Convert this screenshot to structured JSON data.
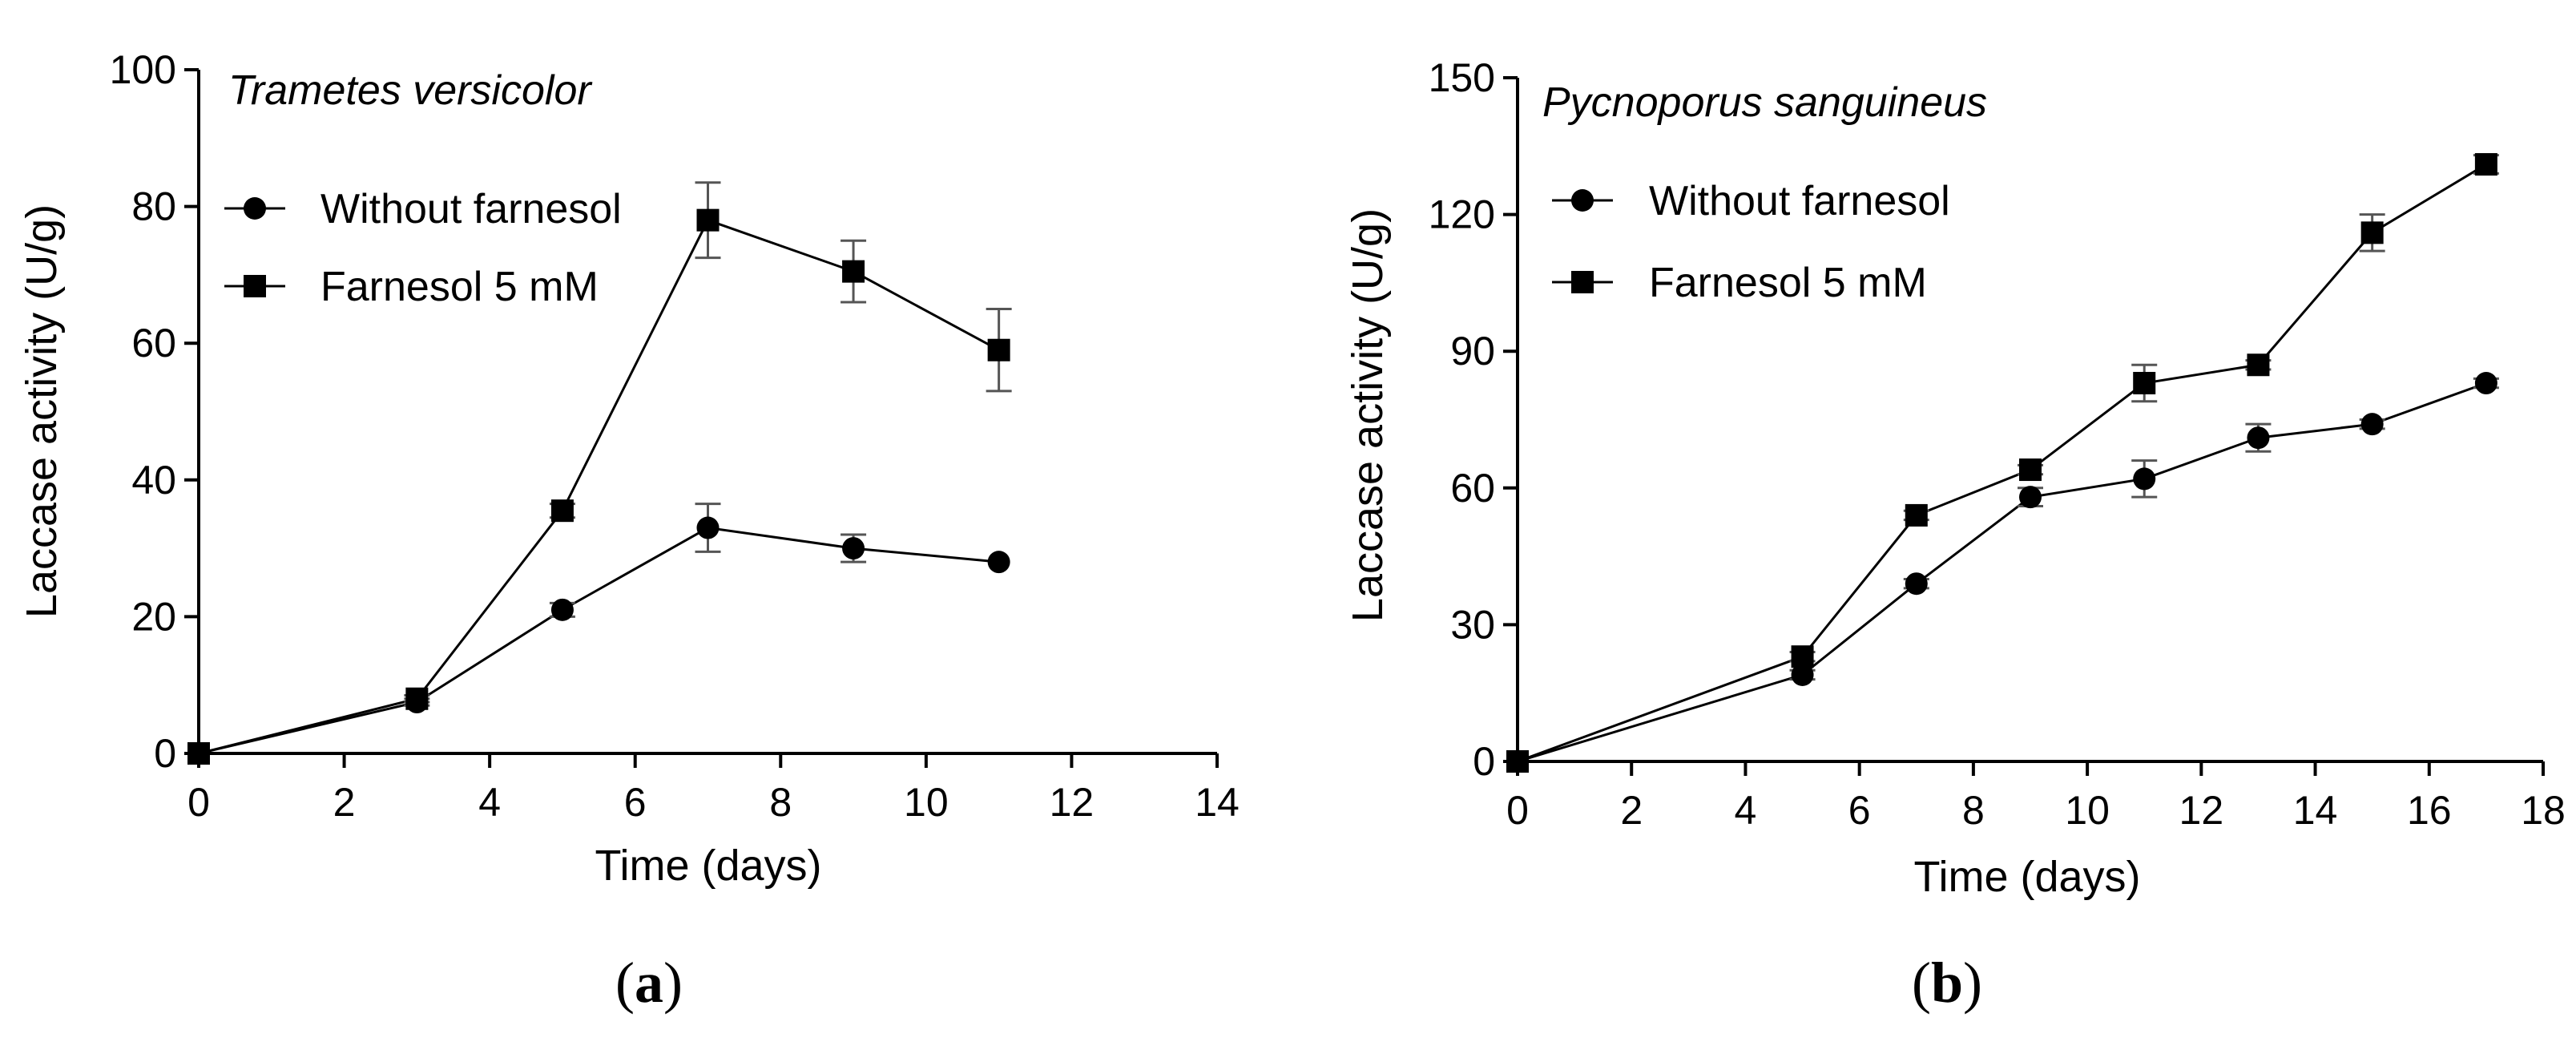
{
  "chart_data": [
    {
      "type": "line",
      "panel_label": "(a)",
      "panel_label_bold": "a",
      "title": "Trametes versicolor",
      "xlabel": "Time (days)",
      "ylabel": "Laccase activity (U/g)",
      "xlim": [
        0,
        14
      ],
      "ylim": [
        0,
        100
      ],
      "xticks": [
        0,
        2,
        4,
        6,
        8,
        10,
        12,
        14
      ],
      "yticks": [
        0,
        20,
        40,
        60,
        80,
        100
      ],
      "grid": false,
      "legend_position": "top-left",
      "series": [
        {
          "name": "Without farnesol",
          "marker": "circle",
          "x": [
            0,
            3,
            5,
            7,
            9,
            11
          ],
          "values": [
            0,
            7.5,
            21,
            33,
            30,
            28
          ],
          "errors": [
            0,
            0.5,
            1,
            3.5,
            2,
            0
          ]
        },
        {
          "name": "Farnesol 5 mM",
          "marker": "square",
          "x": [
            0,
            3,
            5,
            7,
            9,
            11
          ],
          "values": [
            0,
            8,
            35.5,
            78,
            70.5,
            59
          ],
          "errors": [
            0,
            0.5,
            1,
            5.5,
            4.5,
            6
          ]
        }
      ]
    },
    {
      "type": "line",
      "panel_label": "(b)",
      "panel_label_bold": "b",
      "title": "Pycnoporus sanguineus",
      "xlabel": "Time (days)",
      "ylabel": "Laccase activity (U/g)",
      "xlim": [
        0,
        18
      ],
      "ylim": [
        0,
        150
      ],
      "xticks": [
        0,
        2,
        4,
        6,
        8,
        10,
        12,
        14,
        16,
        18
      ],
      "yticks": [
        0,
        30,
        60,
        90,
        120,
        150
      ],
      "grid": false,
      "legend_position": "top-left",
      "series": [
        {
          "name": "Without farnesol",
          "marker": "circle",
          "x": [
            0,
            5,
            7,
            9,
            11,
            13,
            15,
            17
          ],
          "values": [
            0,
            19,
            39,
            58,
            62,
            71,
            74,
            83
          ],
          "errors": [
            0,
            1,
            1,
            2,
            4,
            3,
            1,
            1
          ]
        },
        {
          "name": "Farnesol 5 mM",
          "marker": "square",
          "x": [
            0,
            5,
            7,
            9,
            11,
            13,
            15,
            17
          ],
          "values": [
            0,
            23,
            54,
            64,
            83,
            87,
            116,
            131
          ],
          "errors": [
            0,
            1,
            1,
            1,
            4,
            1,
            4,
            2
          ]
        }
      ]
    }
  ],
  "colors": {
    "line": "#000000",
    "marker": "#000000",
    "error_bar": "#555555",
    "background": "#ffffff"
  }
}
